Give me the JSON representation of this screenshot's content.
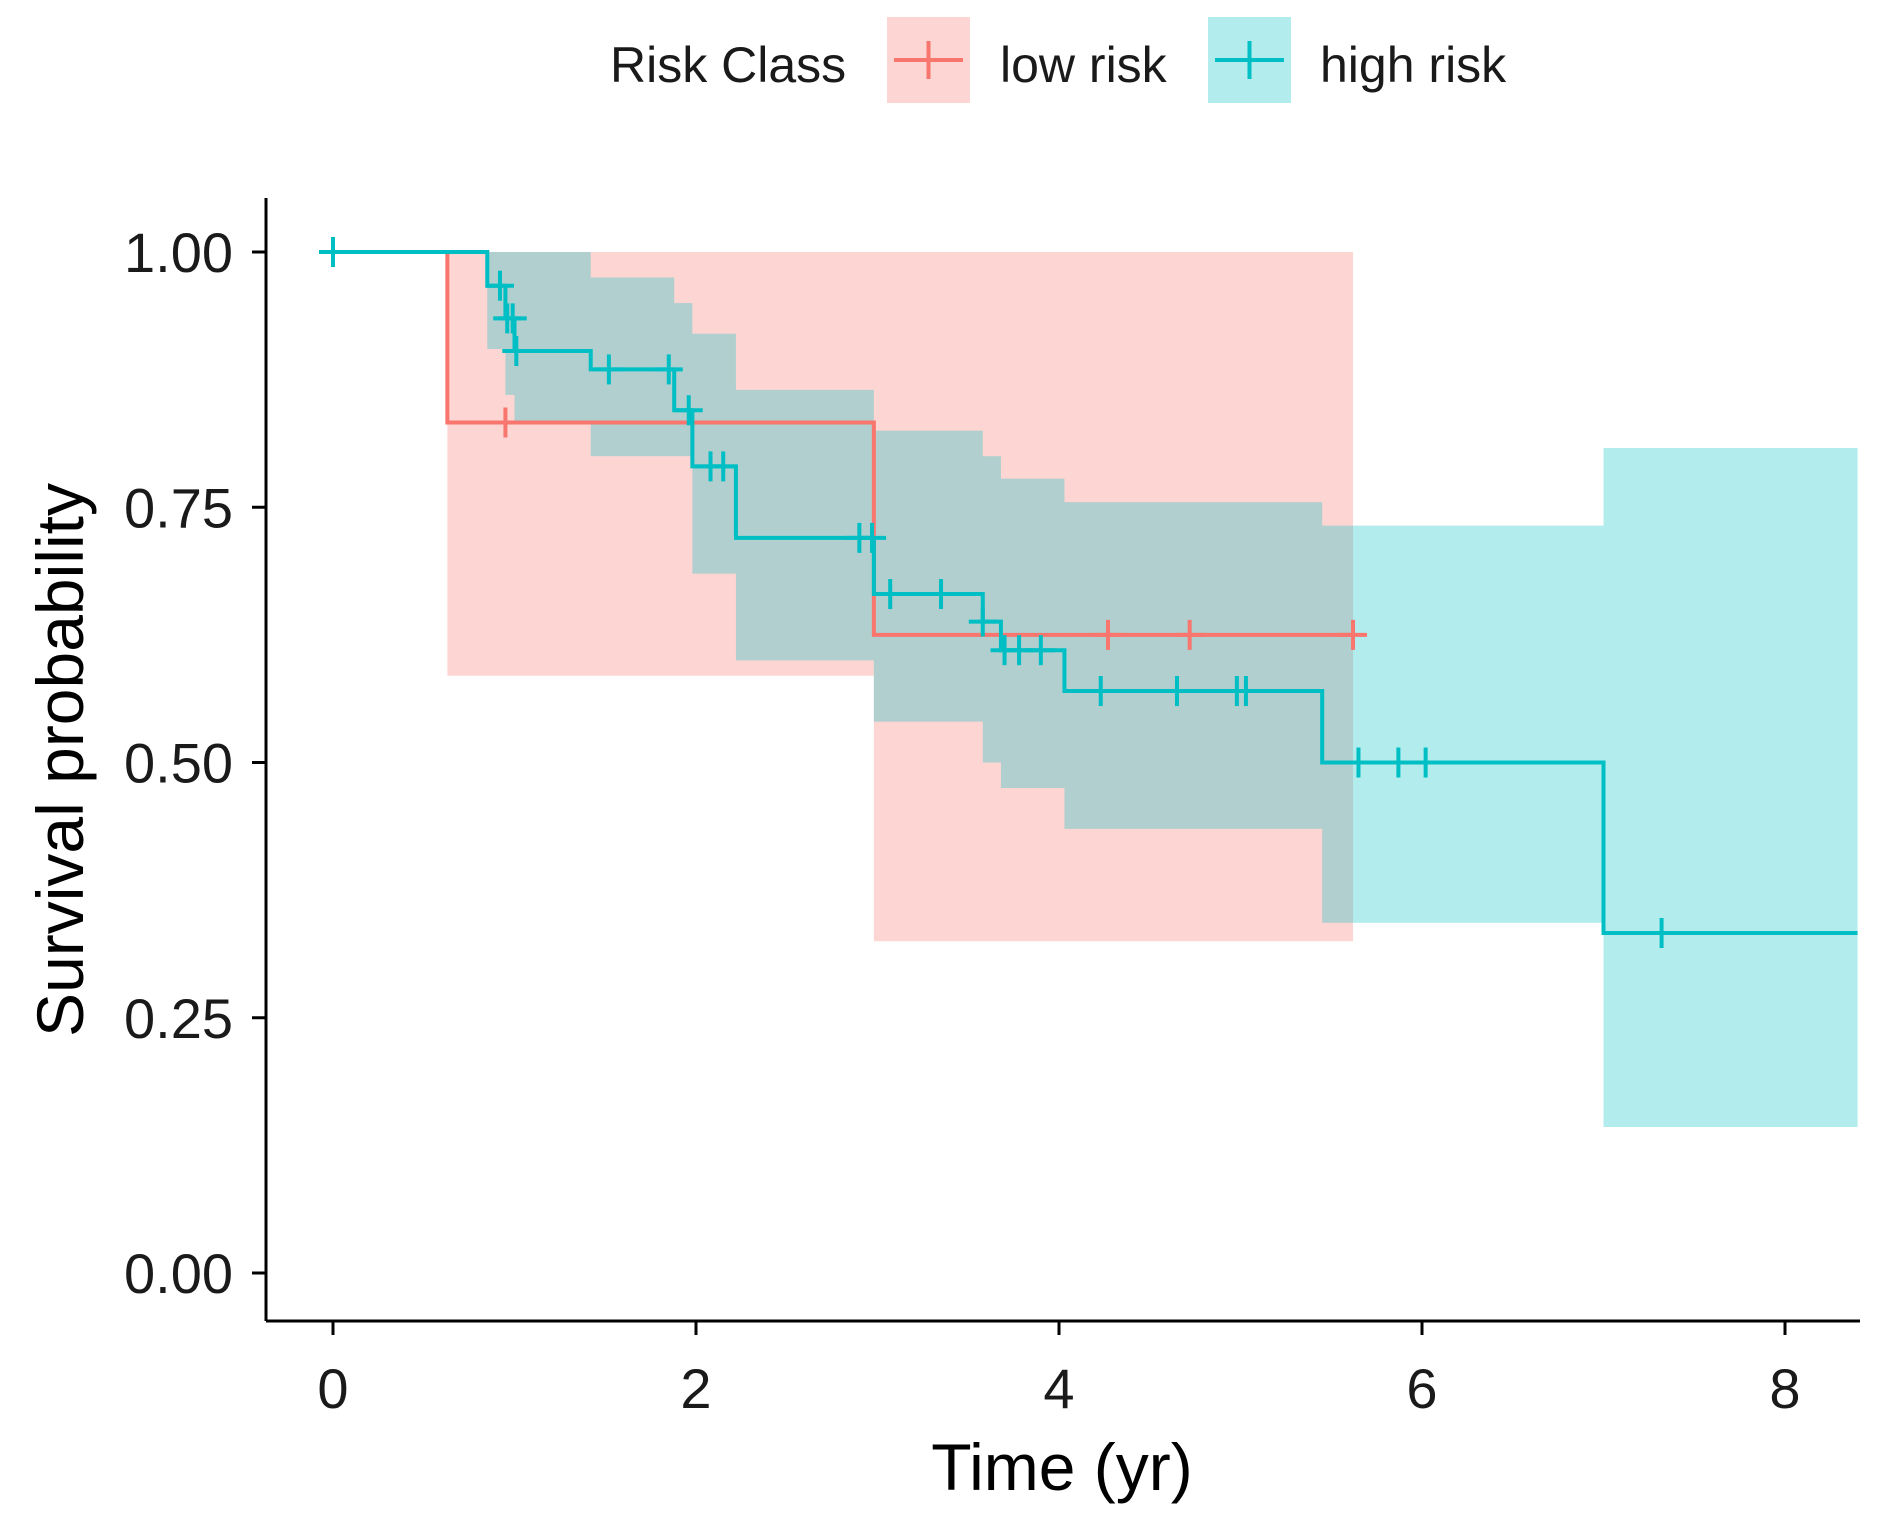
{
  "chart_data": {
    "type": "line",
    "subtype": "kaplan-meier survival curve",
    "xlabel": "Time (yr)",
    "ylabel": "Survival probability",
    "xlim": [
      -0.4,
      8.4
    ],
    "ylim": [
      -0.05,
      1.05
    ],
    "xticks": [
      {
        "value": 0,
        "label": "0"
      },
      {
        "value": 2,
        "label": "2"
      },
      {
        "value": 4,
        "label": "4"
      },
      {
        "value": 6,
        "label": "6"
      },
      {
        "value": 8,
        "label": "8"
      }
    ],
    "yticks": [
      {
        "value": 0,
        "label": "0.00"
      },
      {
        "value": 0.25,
        "label": "0.25"
      },
      {
        "value": 0.5,
        "label": "0.50"
      },
      {
        "value": 0.75,
        "label": "0.75"
      },
      {
        "value": 1,
        "label": "1.00"
      }
    ],
    "grid": false,
    "legend": {
      "title": "Risk Class",
      "position": "top",
      "entries": [
        {
          "key": "low",
          "label": "low risk"
        },
        {
          "key": "high",
          "label": "high risk"
        }
      ]
    },
    "series": [
      {
        "key": "low",
        "name": "low risk",
        "color": "#F8766D",
        "band_color": "#F8766D",
        "band_opacity": 0.3,
        "end": 5.62,
        "steps": [
          {
            "x": 0,
            "y": 1.0,
            "lower": 1.0,
            "upper": 1.0
          },
          {
            "x": 0.63,
            "y": 0.833,
            "lower": 0.585,
            "upper": 1.0
          },
          {
            "x": 2.98,
            "y": 0.625,
            "lower": 0.325,
            "upper": 1.0
          }
        ],
        "censors": [
          0.95,
          4.27,
          4.72,
          5.62
        ]
      },
      {
        "key": "high",
        "name": "high risk",
        "color": "#00BFC4",
        "band_color": "#00BFC4",
        "band_opacity": 0.3,
        "end": 8.4,
        "steps": [
          {
            "x": 0,
            "y": 1.0,
            "lower": 1.0,
            "upper": 1.0
          },
          {
            "x": 0.85,
            "y": 0.967,
            "lower": 0.905,
            "upper": 1.0
          },
          {
            "x": 0.95,
            "y": 0.935,
            "lower": 0.86,
            "upper": 1.0
          },
          {
            "x": 1.0,
            "y": 0.903,
            "lower": 0.833,
            "upper": 1.0
          },
          {
            "x": 1.42,
            "y": 0.885,
            "lower": 0.8,
            "upper": 0.975
          },
          {
            "x": 1.88,
            "y": 0.845,
            "lower": 0.8,
            "upper": 0.95
          },
          {
            "x": 1.98,
            "y": 0.79,
            "lower": 0.685,
            "upper": 0.92
          },
          {
            "x": 2.22,
            "y": 0.72,
            "lower": 0.6,
            "upper": 0.865
          },
          {
            "x": 2.98,
            "y": 0.665,
            "lower": 0.54,
            "upper": 0.825
          },
          {
            "x": 3.58,
            "y": 0.638,
            "lower": 0.5,
            "upper": 0.8
          },
          {
            "x": 3.68,
            "y": 0.61,
            "lower": 0.475,
            "upper": 0.778
          },
          {
            "x": 4.03,
            "y": 0.57,
            "lower": 0.435,
            "upper": 0.755
          },
          {
            "x": 5.45,
            "y": 0.5,
            "lower": 0.343,
            "upper": 0.732
          },
          {
            "x": 7.0,
            "y": 0.333,
            "lower": 0.143,
            "upper": 0.808
          }
        ],
        "censors": [
          0.0,
          0.92,
          0.96,
          0.99,
          1.01,
          1.52,
          1.85,
          1.96,
          2.08,
          2.15,
          2.9,
          2.97,
          3.07,
          3.35,
          3.58,
          3.7,
          3.78,
          3.9,
          4.23,
          4.65,
          4.98,
          5.03,
          5.65,
          5.87,
          6.02,
          7.32
        ]
      }
    ]
  }
}
